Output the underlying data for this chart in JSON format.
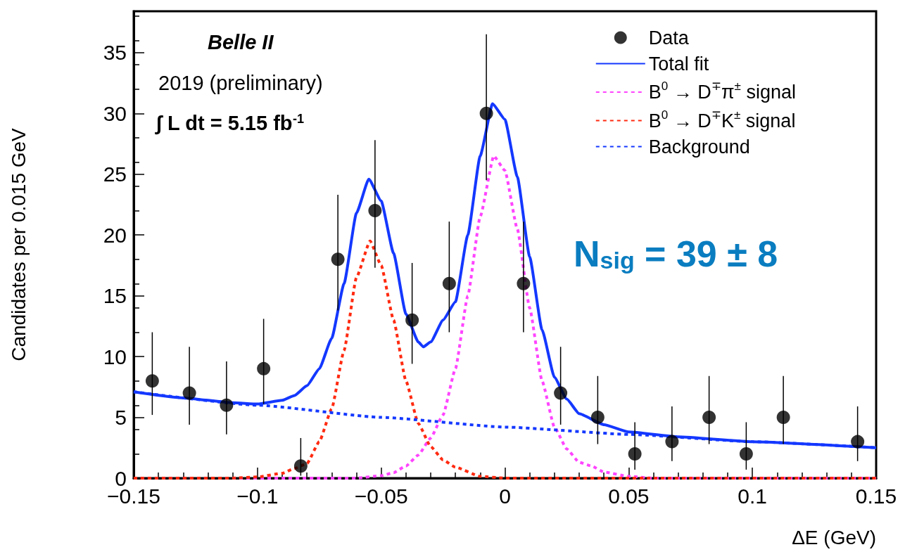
{
  "chart_data": {
    "type": "line",
    "xlabel": "ΔE (GeV)",
    "ylabel": "Candidates per 0.015 GeV",
    "xlim": [
      -0.15,
      0.15
    ],
    "xticks": [
      {
        "value": -0.15,
        "label": "−0.15"
      },
      {
        "value": -0.1,
        "label": "−0.1"
      },
      {
        "value": -0.05,
        "label": "−0.05"
      },
      0,
      0.05,
      0.1,
      0.15
    ],
    "ylim": [
      0,
      38.4
    ],
    "yticks": [
      0,
      5,
      10,
      15,
      20,
      25,
      30,
      35
    ],
    "grid": false,
    "legend": "top right",
    "annotations": [
      "Belle II",
      "2019 (preliminary)",
      "∫ L dt = 5.15 fb$^{-1}$",
      "N$_{sig}$ = 39 ± 8"
    ],
    "series": [
      {
        "name": "Data",
        "type": "scatter",
        "color": "#000000",
        "marker": "circle",
        "x": [
          -0.1425,
          -0.1275,
          -0.1125,
          -0.0975,
          -0.0825,
          -0.0675,
          -0.0525,
          -0.0375,
          -0.0225,
          -0.0075,
          0.0075,
          0.0225,
          0.0375,
          0.0525,
          0.0675,
          0.0825,
          0.0975,
          0.1125,
          0.1425
        ],
        "values": [
          8,
          7,
          6,
          9,
          1,
          18,
          22,
          13,
          16,
          30,
          16,
          7,
          5,
          2,
          3,
          5,
          2,
          5,
          3
        ],
        "errors": [
          [
            5.2,
            12.0
          ],
          [
            4.4,
            10.8
          ],
          [
            3.6,
            9.6
          ],
          [
            6.1,
            13.1
          ],
          [
            0.2,
            3.3
          ],
          [
            13.8,
            23.3
          ],
          [
            17.3,
            27.8
          ],
          [
            9.4,
            17.7
          ],
          [
            12.0,
            21.1
          ],
          [
            24.5,
            36.5
          ],
          [
            12.0,
            21.1
          ],
          [
            4.4,
            10.8
          ],
          [
            2.8,
            8.4
          ],
          [
            0.7,
            4.6
          ],
          [
            1.4,
            5.9
          ],
          [
            2.8,
            8.4
          ],
          [
            0.7,
            4.6
          ],
          [
            2.8,
            8.4
          ],
          [
            1.4,
            5.9
          ]
        ]
      },
      {
        "name": "Total fit",
        "color": "#1438ff",
        "marker": "none",
        "line_style": "solid",
        "x": [
          -0.15,
          -0.13,
          -0.11,
          -0.1,
          -0.09,
          -0.085,
          -0.08,
          -0.075,
          -0.07,
          -0.065,
          -0.06,
          -0.055,
          -0.05,
          -0.045,
          -0.04,
          -0.035,
          -0.033,
          -0.03,
          -0.025,
          -0.02,
          -0.015,
          -0.01,
          -0.005,
          0,
          0.005,
          0.01,
          0.015,
          0.02,
          0.025,
          0.03,
          0.04,
          0.05,
          0.07,
          0.1,
          0.15
        ],
        "values": [
          7.1,
          6.6,
          6.2,
          6.1,
          6.4,
          6.8,
          7.6,
          9.0,
          11.5,
          16.0,
          21.8,
          24.6,
          22.8,
          18.5,
          13.5,
          11.2,
          10.8,
          11.2,
          13.0,
          14.5,
          20.0,
          26.5,
          30.8,
          29.5,
          24.8,
          18.2,
          12.2,
          8.3,
          6.5,
          5.3,
          4.4,
          3.8,
          3.4,
          3.0,
          2.5
        ]
      },
      {
        "name": "B$^{0}$ → D$^{∓}$π$^{±}$ signal",
        "color": "#ff44ff",
        "marker": "none",
        "line_style": "dotted",
        "x": [
          -0.15,
          -0.06,
          -0.05,
          -0.045,
          -0.04,
          -0.035,
          -0.03,
          -0.025,
          -0.02,
          -0.015,
          -0.01,
          -0.0045,
          0,
          0.005,
          0.01,
          0.015,
          0.02,
          0.025,
          0.03,
          0.035,
          0.04,
          0.05,
          0.06,
          0.15
        ],
        "values": [
          0,
          0,
          0.2,
          0.45,
          1.0,
          1.9,
          3.3,
          5.2,
          9.0,
          15.0,
          21.5,
          26.5,
          25.3,
          20.5,
          14.0,
          8.0,
          4.2,
          2.4,
          1.3,
          1.0,
          0.5,
          0.15,
          0,
          0
        ]
      },
      {
        "name": "B$^{0}$ → D$^{∓}$K$^{±}$ signal",
        "color": "#ff2a10",
        "marker": "none",
        "line_style": "dotted",
        "x": [
          -0.15,
          -0.11,
          -0.1,
          -0.09,
          -0.085,
          -0.08,
          -0.075,
          -0.07,
          -0.065,
          -0.06,
          -0.0545,
          -0.05,
          -0.045,
          -0.04,
          -0.035,
          -0.03,
          -0.025,
          -0.02,
          -0.01,
          0,
          0.15
        ],
        "values": [
          0,
          0,
          0.1,
          0.4,
          0.8,
          1.2,
          3.0,
          5.7,
          10.5,
          16.5,
          19.5,
          17.5,
          13.0,
          8.0,
          4.5,
          2.6,
          1.5,
          0.9,
          0.15,
          0,
          0
        ]
      },
      {
        "name": "Background",
        "color": "#1438ff",
        "marker": "none",
        "line_style": "dotted",
        "x": [
          -0.15,
          -0.1,
          -0.05,
          0,
          0.05,
          0.1,
          0.15
        ],
        "values": [
          7.1,
          6.0,
          5.0,
          4.2,
          3.6,
          3.0,
          2.5
        ]
      }
    ]
  }
}
